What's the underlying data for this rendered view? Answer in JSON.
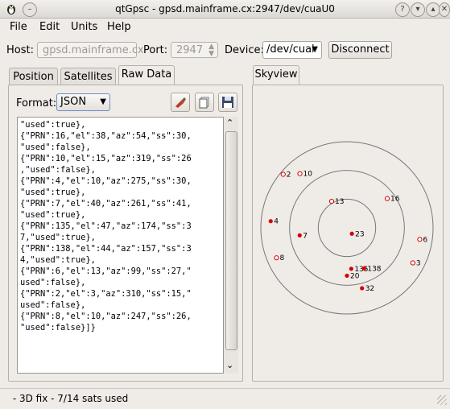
{
  "window": {
    "title": "qtGpsc - gpsd.mainframe.cx:2947/dev/cuaU0"
  },
  "menu": [
    {
      "label": "File"
    },
    {
      "label": "Edit"
    },
    {
      "label": "Units"
    },
    {
      "label": "Help"
    }
  ],
  "connection": {
    "host_label": "Host:",
    "host_value": "gpsd.mainframe.cx",
    "port_label": "Port:",
    "port_value": "2947",
    "device_label": "Device:",
    "device_value": "/dev/cual",
    "disconnect_label": "Disconnect"
  },
  "tabs": [
    {
      "label": "Position"
    },
    {
      "label": "Satellites"
    },
    {
      "label": "Raw Data"
    }
  ],
  "raw": {
    "format_label": "Format:",
    "format_value": "JSON",
    "text": "\"used\":true},\n{\"PRN\":16,\"el\":38,\"az\":54,\"ss\":30,\n\"used\":false},\n{\"PRN\":10,\"el\":15,\"az\":319,\"ss\":26\n,\"used\":false},\n{\"PRN\":4,\"el\":10,\"az\":275,\"ss\":30,\n\"used\":true},\n{\"PRN\":7,\"el\":40,\"az\":261,\"ss\":41,\n\"used\":true},\n{\"PRN\":135,\"el\":47,\"az\":174,\"ss\":3\n7,\"used\":true},\n{\"PRN\":138,\"el\":44,\"az\":157,\"ss\":3\n4,\"used\":true},\n{\"PRN\":6,\"el\":13,\"az\":99,\"ss\":27,\"\nused\":false},\n{\"PRN\":2,\"el\":3,\"az\":310,\"ss\":15,\"\nused\":false},\n{\"PRN\":8,\"el\":10,\"az\":247,\"ss\":26,\n\"used\":false}]}"
  },
  "skyview": {
    "tab_label": "Skyview",
    "used_color": "#d40000",
    "unused_color": "#d40000",
    "satellites": [
      {
        "prn": "2",
        "el": 3,
        "az": 310,
        "used": false
      },
      {
        "prn": "10",
        "el": 15,
        "az": 319,
        "used": false
      },
      {
        "prn": "13",
        "el": 58,
        "az": 330,
        "used": false
      },
      {
        "prn": "16",
        "el": 38,
        "az": 54,
        "used": false
      },
      {
        "prn": "23",
        "el": 82,
        "az": 140,
        "used": true
      },
      {
        "prn": "4",
        "el": 10,
        "az": 275,
        "used": true
      },
      {
        "prn": "7",
        "el": 40,
        "az": 261,
        "used": true
      },
      {
        "prn": "6",
        "el": 13,
        "az": 99,
        "used": false
      },
      {
        "prn": "3",
        "el": 12,
        "az": 118,
        "used": false
      },
      {
        "prn": "8",
        "el": 10,
        "az": 247,
        "used": false
      },
      {
        "prn": "135",
        "el": 47,
        "az": 174,
        "used": true
      },
      {
        "prn": "138",
        "el": 44,
        "az": 157,
        "used": true
      },
      {
        "prn": "20",
        "el": 40,
        "az": 180,
        "used": true
      },
      {
        "prn": "32",
        "el": 25,
        "az": 166,
        "used": true
      }
    ]
  },
  "status": {
    "text": " - 3D fix - 7/14 sats used"
  }
}
